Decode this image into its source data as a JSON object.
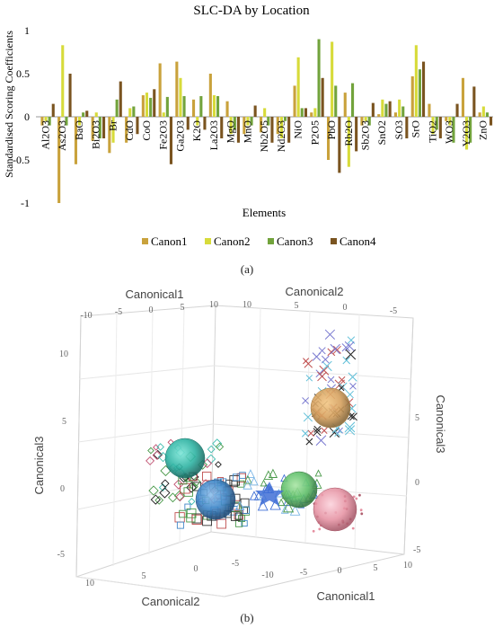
{
  "panel_a": {
    "caption": "(a)"
  },
  "panel_b": {
    "caption": "(b)",
    "axis_labels": {
      "top_left": "Canonical1",
      "top_right": "Canonical2",
      "left": "Canonical3",
      "right": "Canonical3",
      "bottom_left": "Canonical2",
      "bottom_right": "Canonical1"
    },
    "ticks": {
      "top_left": [
        "-10",
        "-5",
        "0",
        "5",
        "10"
      ],
      "top_right": [
        "10",
        "5",
        "0",
        "-5"
      ],
      "left": [
        "10",
        "5",
        "0",
        "-5"
      ],
      "right": [
        "5",
        "0",
        "-5"
      ],
      "bottom_left": [
        "10",
        "5",
        "0",
        "-5"
      ],
      "bottom_right": [
        "-10",
        "-5",
        "0",
        "5",
        "10"
      ]
    }
  },
  "chart_data": [
    {
      "type": "bar",
      "title": "SLC-DA by Location",
      "xlabel": "Elements",
      "ylabel": "Standardised Scoring Coefficients",
      "ylim": [
        -1,
        1
      ],
      "yticks": [
        "1",
        "0.5",
        "0",
        "-0.5",
        "-1"
      ],
      "grid": false,
      "legend_position": "bottom",
      "categories": [
        "Al2O3",
        "As2O3",
        "BaO",
        "Bi2O3",
        "Br",
        "CdO",
        "CoO",
        "Fe2O3",
        "Ga2O3",
        "K2O",
        "La2O3",
        "MgO",
        "MnO",
        "Nb2O5",
        "Nd2O3",
        "NiO",
        "P2O5",
        "PbO",
        "Rb2O",
        "Sb2O3",
        "SnO2",
        "SO3",
        "SrO",
        "TiO2",
        "WO3",
        "Y2O3",
        "ZnO"
      ],
      "series": [
        {
          "name": "Canon1",
          "color": "#c9a23c",
          "values": [
            -0.1,
            -1.0,
            -0.55,
            -0.28,
            -0.42,
            -0.3,
            0.25,
            0.62,
            0.64,
            0.2,
            0.5,
            0.18,
            -0.2,
            -0.18,
            -0.2,
            0.36,
            0.05,
            -0.5,
            0.28,
            -0.1,
            0.03,
            0.05,
            0.47,
            0.15,
            -0.05,
            0.45,
            0.05
          ]
        },
        {
          "name": "Canon2",
          "color": "#d7db3a",
          "values": [
            -0.05,
            0.83,
            -0.1,
            0.05,
            -0.3,
            0.1,
            0.28,
            0.05,
            0.45,
            -0.1,
            0.25,
            -0.2,
            -0.1,
            0.1,
            -0.25,
            0.69,
            0.1,
            0.87,
            -0.58,
            -0.05,
            0.2,
            0.2,
            0.83,
            -0.2,
            -0.1,
            -0.38,
            0.12
          ]
        },
        {
          "name": "Canon3",
          "color": "#72a33c",
          "values": [
            -0.1,
            -0.1,
            0.05,
            -0.25,
            0.2,
            0.12,
            0.22,
            0.23,
            0.24,
            0.24,
            0.24,
            -0.15,
            -0.1,
            -0.1,
            -0.05,
            0.1,
            0.9,
            0.36,
            0.39,
            -0.1,
            0.15,
            0.12,
            0.55,
            -0.15,
            -0.3,
            -0.3,
            0.05
          ]
        },
        {
          "name": "Canon4",
          "color": "#7a5420",
          "values": [
            0.15,
            0.5,
            0.07,
            -0.25,
            0.41,
            -0.2,
            0.32,
            -0.55,
            -0.15,
            -0.15,
            -0.25,
            -0.3,
            0.13,
            -0.3,
            -0.3,
            0.1,
            0.45,
            -0.65,
            -0.4,
            0.16,
            0.18,
            -0.25,
            0.64,
            -0.25,
            0.15,
            0.35,
            -0.1
          ]
        }
      ]
    },
    {
      "type": "scatter",
      "chart_kind": "3d-scatter",
      "axis_ranges": {
        "Canonical1": [
          -10,
          10
        ],
        "Canonical2": [
          -5,
          10
        ],
        "Canonical3": [
          -5,
          10
        ]
      },
      "groups": [
        {
          "color": "#d6a15f",
          "center": [
            6,
            -2,
            5.5
          ]
        },
        {
          "color": "#3fbdb0",
          "center": [
            -7,
            2,
            2
          ]
        },
        {
          "color": "#3f86c7",
          "center": [
            -3,
            2,
            -1
          ]
        },
        {
          "color": "#5fbf6a",
          "center": [
            3,
            -2,
            0
          ]
        },
        {
          "color": "#e58fa0",
          "center": [
            6,
            -4,
            -1
          ]
        }
      ]
    }
  ]
}
